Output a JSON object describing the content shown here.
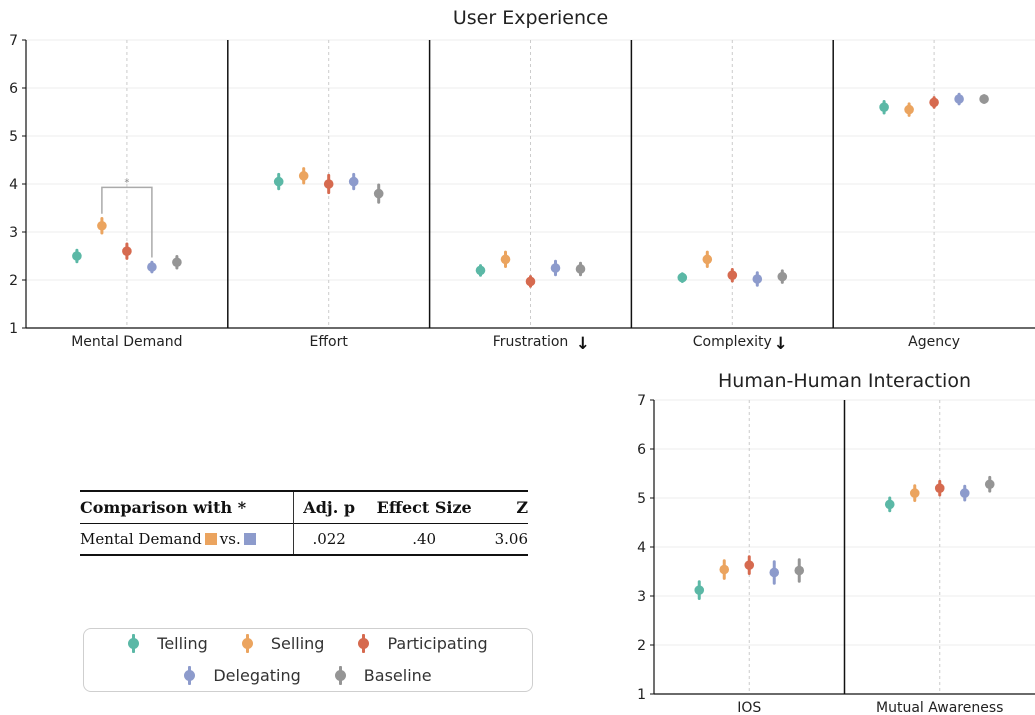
{
  "colors": {
    "Telling": "#5bb8a6",
    "Selling": "#eba45f",
    "Participating": "#d66a4f",
    "Delegating": "#8d9bcc",
    "Baseline": "#959595"
  },
  "chart_data": [
    {
      "type": "scatter",
      "title": "User Experience",
      "categories": [
        "Mental Demand",
        "Effort",
        "Frustration",
        "Complexity",
        "Agency"
      ],
      "category_markers": [
        "",
        "",
        "↓",
        "↓",
        ""
      ],
      "ylim": [
        1,
        7
      ],
      "yticks": [
        1,
        2,
        3,
        4,
        5,
        6,
        7
      ],
      "grid": true,
      "series": [
        {
          "name": "Telling",
          "values": [
            2.5,
            4.05,
            2.2,
            2.05,
            5.6
          ],
          "ci": [
            0.12,
            0.15,
            0.1,
            0.08,
            0.12
          ]
        },
        {
          "name": "Selling",
          "values": [
            3.13,
            4.17,
            2.43,
            2.43,
            5.55
          ],
          "ci": [
            0.15,
            0.15,
            0.15,
            0.15,
            0.12
          ]
        },
        {
          "name": "Participating",
          "values": [
            2.6,
            4.0,
            1.97,
            2.1,
            5.7
          ],
          "ci": [
            0.15,
            0.18,
            0.1,
            0.12,
            0.1
          ]
        },
        {
          "name": "Delegating",
          "values": [
            2.27,
            4.05,
            2.25,
            2.02,
            5.77
          ],
          "ci": [
            0.1,
            0.15,
            0.14,
            0.13,
            0.1
          ]
        },
        {
          "name": "Baseline",
          "values": [
            2.37,
            3.8,
            2.23,
            2.07,
            5.77
          ],
          "ci": [
            0.12,
            0.18,
            0.12,
            0.12,
            0.07
          ]
        }
      ],
      "annotation": {
        "category": "Mental Demand",
        "from": "Selling",
        "to": "Delegating",
        "label": "*"
      }
    },
    {
      "type": "scatter",
      "title": "Human-Human Interaction",
      "categories": [
        "IOS",
        "Mutual Awareness"
      ],
      "ylim": [
        1,
        7
      ],
      "yticks": [
        1,
        2,
        3,
        4,
        5,
        6,
        7
      ],
      "grid": true,
      "series": [
        {
          "name": "Telling",
          "values": [
            3.12,
            4.87
          ],
          "ci": [
            0.17,
            0.13
          ]
        },
        {
          "name": "Selling",
          "values": [
            3.54,
            5.1
          ],
          "ci": [
            0.18,
            0.15
          ]
        },
        {
          "name": "Participating",
          "values": [
            3.63,
            5.2
          ],
          "ci": [
            0.17,
            0.14
          ]
        },
        {
          "name": "Delegating",
          "values": [
            3.48,
            5.1
          ],
          "ci": [
            0.22,
            0.14
          ]
        },
        {
          "name": "Baseline",
          "values": [
            3.52,
            5.28
          ],
          "ci": [
            0.22,
            0.14
          ]
        }
      ]
    }
  ],
  "table": {
    "headers": [
      "Comparison with *",
      "Adj. p",
      "Effect Size",
      "Z"
    ],
    "row": {
      "measure": "Mental Demand",
      "vs": "vs.",
      "square1": "Selling",
      "square2": "Delegating",
      "p": ".022",
      "effect": ".40",
      "z": "3.06"
    }
  },
  "legend": {
    "rows": [
      [
        "Telling",
        "Selling",
        "Participating"
      ],
      [
        "Delegating",
        "Baseline"
      ]
    ]
  }
}
